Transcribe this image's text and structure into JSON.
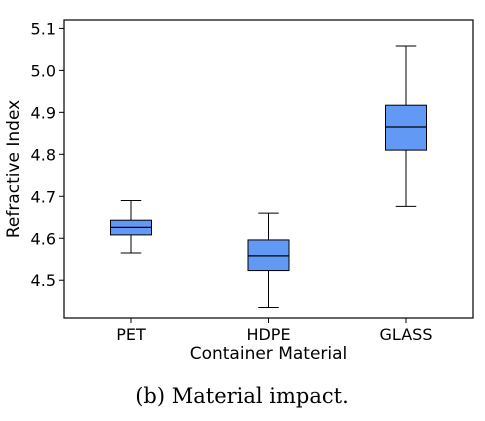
{
  "chart_data": {
    "type": "box",
    "xlabel": "Container Material",
    "ylabel": "Refractive Index",
    "ylim": [
      4.41,
      5.12
    ],
    "yticks": [
      "4.5",
      "4.6",
      "4.7",
      "4.8",
      "4.9",
      "5.0",
      "5.1"
    ],
    "categories": [
      "PET",
      "HDPE",
      "GLASS"
    ],
    "boxes": [
      {
        "category": "PET",
        "whisker_low": 4.565,
        "q1": 4.608,
        "median": 4.626,
        "q3": 4.643,
        "whisker_high": 4.69
      },
      {
        "category": "HDPE",
        "whisker_low": 4.435,
        "q1": 4.523,
        "median": 4.558,
        "q3": 4.596,
        "whisker_high": 4.66
      },
      {
        "category": "GLASS",
        "whisker_low": 4.676,
        "q1": 4.81,
        "median": 4.865,
        "q3": 4.917,
        "whisker_high": 5.058
      }
    ],
    "box_color": "#6199f5",
    "line_color": "#000000",
    "grid": false,
    "legend": "none"
  },
  "caption": "(b)  Material impact."
}
